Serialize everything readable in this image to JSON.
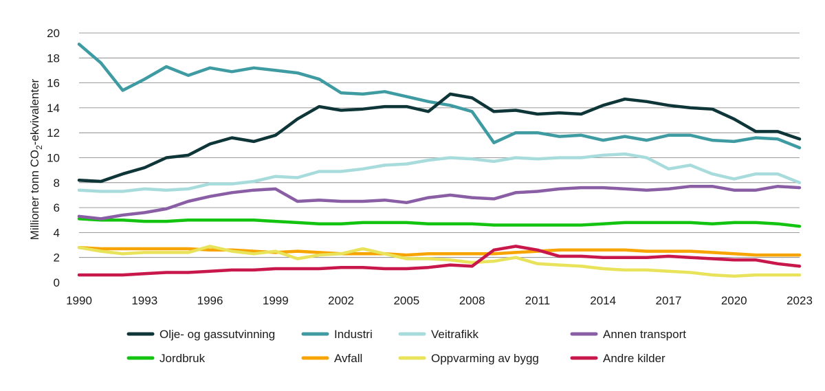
{
  "chart_data": {
    "type": "line",
    "title": "",
    "xlabel": "",
    "ylabel": "Millioner tonn CO",
    "ylabel_sub": "2",
    "ylabel_suffix": "-ekvivalenter",
    "ylim": [
      0,
      20
    ],
    "yticks": [
      0,
      2,
      4,
      6,
      8,
      10,
      12,
      14,
      16,
      18,
      20
    ],
    "xlim": [
      1990,
      2023
    ],
    "xticks": [
      1990,
      1993,
      1996,
      1999,
      2002,
      2005,
      2008,
      2011,
      2014,
      2017,
      2020,
      2023
    ],
    "grid": "horizontal",
    "legend_position": "bottom",
    "x": [
      1990,
      1991,
      1992,
      1993,
      1994,
      1995,
      1996,
      1997,
      1998,
      1999,
      2000,
      2001,
      2002,
      2003,
      2004,
      2005,
      2006,
      2007,
      2008,
      2009,
      2010,
      2011,
      2012,
      2013,
      2014,
      2015,
      2016,
      2017,
      2018,
      2019,
      2020,
      2021,
      2022,
      2023
    ],
    "series": [
      {
        "name": "Jordbruk",
        "color": "#12c30f",
        "values": [
          5.1,
          5.0,
          5.0,
          4.9,
          4.9,
          5.0,
          5.0,
          5.0,
          5.0,
          4.9,
          4.8,
          4.7,
          4.7,
          4.8,
          4.8,
          4.8,
          4.7,
          4.7,
          4.7,
          4.6,
          4.6,
          4.6,
          4.6,
          4.6,
          4.7,
          4.8,
          4.8,
          4.8,
          4.8,
          4.7,
          4.8,
          4.8,
          4.7,
          4.5
        ]
      },
      {
        "name": "Avfall",
        "color": "#f7a400",
        "values": [
          2.8,
          2.7,
          2.7,
          2.7,
          2.7,
          2.7,
          2.6,
          2.6,
          2.5,
          2.4,
          2.5,
          2.4,
          2.3,
          2.3,
          2.3,
          2.2,
          2.3,
          2.3,
          2.3,
          2.3,
          2.4,
          2.5,
          2.6,
          2.6,
          2.6,
          2.6,
          2.5,
          2.5,
          2.5,
          2.4,
          2.3,
          2.2,
          2.2,
          2.2
        ]
      },
      {
        "name": "Oppvarming av bygg",
        "color": "#e8e35a",
        "values": [
          2.8,
          2.5,
          2.3,
          2.4,
          2.4,
          2.4,
          2.9,
          2.5,
          2.3,
          2.5,
          1.9,
          2.2,
          2.3,
          2.7,
          2.3,
          1.9,
          1.9,
          1.8,
          1.6,
          1.7,
          2.0,
          1.5,
          1.4,
          1.3,
          1.1,
          1.0,
          1.0,
          0.9,
          0.8,
          0.6,
          0.5,
          0.6,
          0.6,
          0.6
        ]
      },
      {
        "name": "Andre kilder",
        "color": "#c8174a",
        "values": [
          0.6,
          0.6,
          0.6,
          0.7,
          0.8,
          0.8,
          0.9,
          1.0,
          1.0,
          1.1,
          1.1,
          1.1,
          1.2,
          1.2,
          1.1,
          1.1,
          1.2,
          1.4,
          1.3,
          2.6,
          2.9,
          2.6,
          2.1,
          2.1,
          2.0,
          2.0,
          2.0,
          2.1,
          2.0,
          1.9,
          1.8,
          1.8,
          1.5,
          1.3
        ]
      },
      {
        "name": "Annen transport",
        "color": "#8a5ea5",
        "values": [
          5.3,
          5.1,
          5.4,
          5.6,
          5.9,
          6.5,
          6.9,
          7.2,
          7.4,
          7.5,
          6.5,
          6.6,
          6.5,
          6.5,
          6.6,
          6.4,
          6.8,
          7.0,
          6.8,
          6.7,
          7.2,
          7.3,
          7.5,
          7.6,
          7.6,
          7.5,
          7.4,
          7.5,
          7.7,
          7.7,
          7.4,
          7.4,
          7.7,
          7.6
        ]
      },
      {
        "name": "Veitrafikk",
        "color": "#a8dcdc",
        "values": [
          7.4,
          7.3,
          7.3,
          7.5,
          7.4,
          7.5,
          7.9,
          7.9,
          8.1,
          8.5,
          8.4,
          8.9,
          8.9,
          9.1,
          9.4,
          9.5,
          9.8,
          10.0,
          9.9,
          9.7,
          10.0,
          9.9,
          10.0,
          10.0,
          10.2,
          10.3,
          10.0,
          9.1,
          9.4,
          8.7,
          8.3,
          8.7,
          8.7,
          8.0
        ]
      },
      {
        "name": "Industri",
        "color": "#3f9ba2",
        "values": [
          19.1,
          17.6,
          15.4,
          16.3,
          17.3,
          16.6,
          17.2,
          16.9,
          17.2,
          17.0,
          16.8,
          16.3,
          15.2,
          15.1,
          15.3,
          14.9,
          14.5,
          14.2,
          13.7,
          11.2,
          12.0,
          12.0,
          11.7,
          11.8,
          11.4,
          11.7,
          11.4,
          11.8,
          11.8,
          11.4,
          11.3,
          11.6,
          11.5,
          10.8
        ]
      },
      {
        "name": "Olje- og gassutvinning",
        "color": "#0e3538",
        "values": [
          8.2,
          8.1,
          8.7,
          9.2,
          10.0,
          10.2,
          11.1,
          11.6,
          11.3,
          11.8,
          13.1,
          14.1,
          13.8,
          13.9,
          14.1,
          14.1,
          13.7,
          15.1,
          14.8,
          13.7,
          13.8,
          13.5,
          13.6,
          13.5,
          14.2,
          14.7,
          14.5,
          14.2,
          14.0,
          13.9,
          13.1,
          12.1,
          12.1,
          11.5
        ]
      }
    ],
    "legend": [
      {
        "label": "Olje- og gassutvinning",
        "color": "#0e3538"
      },
      {
        "label": "Industri",
        "color": "#3f9ba2"
      },
      {
        "label": "Veitrafikk",
        "color": "#a8dcdc"
      },
      {
        "label": "Annen transport",
        "color": "#8a5ea5"
      },
      {
        "label": "Jordbruk",
        "color": "#12c30f"
      },
      {
        "label": "Avfall",
        "color": "#f7a400"
      },
      {
        "label": "Oppvarming av bygg",
        "color": "#e8e35a"
      },
      {
        "label": "Andre kilder",
        "color": "#c8174a"
      }
    ]
  }
}
